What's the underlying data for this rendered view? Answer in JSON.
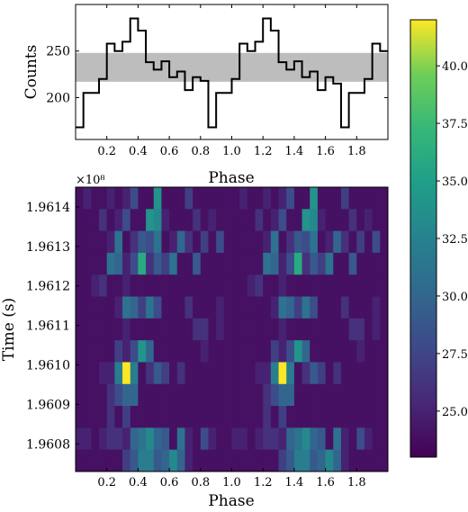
{
  "chart_data": [
    {
      "type": "line",
      "style": "step",
      "xlabel": "Phase",
      "ylabel": "Counts",
      "xlim": [
        0,
        2
      ],
      "ylim": [
        155,
        300
      ],
      "xticks": [
        "0.2",
        "0.4",
        "0.6",
        "0.8",
        "1.0",
        "1.2",
        "1.4",
        "1.6",
        "1.8"
      ],
      "yticks": [
        "200",
        "250"
      ],
      "band": [
        217,
        248
      ],
      "band_color": "#bdbdbd",
      "bin_edges": [
        0.0,
        0.05,
        0.1,
        0.15,
        0.2,
        0.25,
        0.3,
        0.35,
        0.4,
        0.45,
        0.5,
        0.55,
        0.6,
        0.65,
        0.7,
        0.75,
        0.8,
        0.85,
        0.9,
        0.95,
        1.0,
        1.05,
        1.1,
        1.15,
        1.2,
        1.25,
        1.3,
        1.35,
        1.4,
        1.45,
        1.5,
        1.55,
        1.6,
        1.65,
        1.7,
        1.75,
        1.8,
        1.85,
        1.9,
        1.95,
        2.0
      ],
      "values": [
        168,
        205,
        205,
        220,
        258,
        250,
        260,
        285,
        272,
        238,
        230,
        239,
        222,
        228,
        208,
        222,
        218,
        168,
        205,
        205,
        220,
        258,
        250,
        260,
        285,
        272,
        238,
        230,
        239,
        222,
        228,
        208,
        222,
        215,
        168,
        205,
        205,
        220,
        258,
        250
      ]
    },
    {
      "type": "heatmap",
      "xlabel": "Phase",
      "ylabel": "Time (s)",
      "y_multiplier": "×10⁸",
      "xlim": [
        0,
        2
      ],
      "ylim": [
        1.96073,
        1.96145
      ],
      "xticks": [
        "0.2",
        "0.4",
        "0.6",
        "0.8",
        "1.0",
        "1.2",
        "1.4",
        "1.6",
        "1.8"
      ],
      "yticks": [
        "1.9608",
        "1.9609",
        "1.9610",
        "1.9611",
        "1.9612",
        "1.9613",
        "1.9614"
      ],
      "colorbar_ticks": [
        "25.0",
        "27.5",
        "30.0",
        "32.5",
        "35.0",
        "37.5",
        "40.0"
      ],
      "clim": [
        23,
        42
      ],
      "colormap": "viridis",
      "bins_per_cycle": 20,
      "rows": [
        [
          24,
          25,
          24,
          24,
          25,
          24,
          25,
          28,
          24,
          24,
          34,
          24,
          24,
          24,
          27,
          24,
          24,
          24,
          24,
          24
        ],
        [
          24,
          24,
          24,
          26,
          24,
          25,
          28,
          24,
          24,
          34,
          33,
          25,
          24,
          24,
          24,
          26,
          24,
          25,
          24,
          24
        ],
        [
          24,
          24,
          24,
          24,
          25,
          31,
          24,
          26,
          29,
          28,
          31,
          24,
          25,
          30,
          26,
          24,
          27,
          24,
          28,
          24
        ],
        [
          24,
          24,
          24,
          24,
          31,
          30,
          25,
          28,
          36,
          26,
          29,
          27,
          31,
          24,
          24,
          29,
          24,
          24,
          24,
          24
        ],
        [
          24,
          24,
          25,
          26,
          24,
          24,
          25,
          24,
          24,
          24,
          24,
          24,
          24,
          24,
          24,
          24,
          24,
          24,
          24,
          24
        ],
        [
          24,
          24,
          24,
          24,
          24,
          25,
          31,
          30,
          27,
          31,
          28,
          24,
          24,
          24,
          26,
          24,
          24,
          24,
          25,
          24
        ],
        [
          24,
          24,
          24,
          24,
          24,
          24,
          25,
          24,
          24,
          24,
          24,
          24,
          24,
          24,
          24,
          26,
          26,
          24,
          25,
          24
        ],
        [
          24,
          24,
          24,
          24,
          24,
          27,
          25,
          28,
          34,
          30,
          24,
          24,
          24,
          24,
          24,
          24,
          25,
          24,
          24,
          24
        ],
        [
          24,
          24,
          24,
          25,
          25,
          32,
          43,
          32,
          24,
          26,
          29,
          27,
          24,
          26,
          24,
          24,
          24,
          24,
          24,
          24
        ],
        [
          24,
          24,
          24,
          24,
          26,
          28,
          30,
          30,
          24,
          24,
          24,
          24,
          24,
          24,
          24,
          24,
          24,
          24,
          24,
          24
        ],
        [
          24,
          24,
          24,
          24,
          26,
          24,
          27,
          24,
          24,
          24,
          24,
          24,
          24,
          24,
          24,
          24,
          24,
          24,
          24,
          24
        ],
        [
          25,
          25,
          24,
          25,
          26,
          26,
          25,
          30,
          31,
          33,
          30,
          29,
          24,
          31,
          25,
          24,
          28,
          25,
          24,
          24
        ],
        [
          24,
          24,
          24,
          24,
          24,
          24,
          27,
          29,
          32,
          32,
          29,
          30,
          33,
          30,
          25,
          24,
          24,
          24,
          24,
          24
        ]
      ]
    }
  ]
}
